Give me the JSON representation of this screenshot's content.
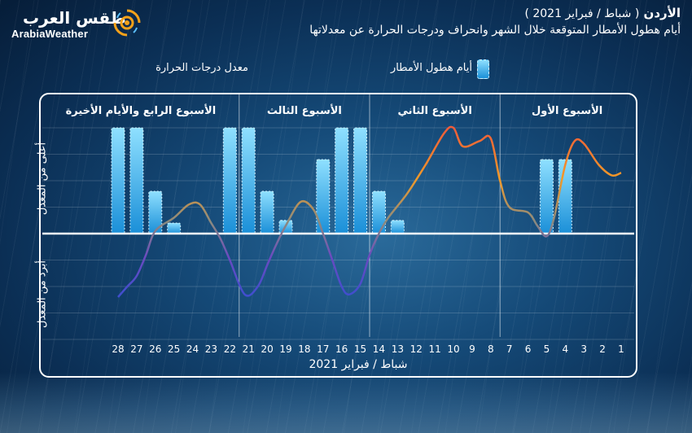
{
  "header": {
    "country": "الأردن",
    "month": "( شباط / فبراير 2021 )",
    "subtitle": "أيام هطول الأمطار المتوقعة خلال الشهر  وانحراف ودرجات الحرارة عن معدلاتها"
  },
  "logo": {
    "arabic": "طقس العرب",
    "english": "ArabiaWeather",
    "icon": "sun-swirl-icon"
  },
  "legend": {
    "rain_days": "أيام هطول الأمطار",
    "avg_temp": "معدل درجات الحرارة"
  },
  "colors": {
    "bar_top": "#8fe0ff",
    "bar_bottom": "#1a8fd8",
    "line_warm": "#f08a2a",
    "line_cold": "#3a4fd0"
  },
  "chart_data": {
    "type": "bar",
    "title": "",
    "xlabel": "شباط / فبراير 2021",
    "ylabel_top": "أعلى من المعدل",
    "ylabel_bottom": "أبرد من المعدل",
    "x_direction": "right-to-left",
    "days": [
      1,
      2,
      3,
      4,
      5,
      6,
      7,
      8,
      9,
      10,
      11,
      12,
      13,
      14,
      15,
      16,
      17,
      18,
      19,
      20,
      21,
      22,
      23,
      24,
      25,
      26,
      27,
      28
    ],
    "x_tick_labels": [
      "1",
      "2",
      "3",
      "4",
      "5",
      "6",
      "7",
      "8",
      "9",
      "10",
      "11",
      "12",
      "13",
      "14",
      "15",
      "16",
      "17",
      "18",
      "19",
      "20",
      "21",
      "22",
      "23",
      "24",
      "25",
      "26",
      "27",
      "28"
    ],
    "weeks": [
      {
        "label": "الأسبوع الأول",
        "start_day": 1,
        "end_day": 7
      },
      {
        "label": "الأسبوع الثاني",
        "start_day": 8,
        "end_day": 14
      },
      {
        "label": "الأسبوع الثالث",
        "start_day": 15,
        "end_day": 21
      },
      {
        "label": "الأسبوع الرابع والأيام الأخيرة",
        "start_day": 22,
        "end_day": 28
      }
    ],
    "series": [
      {
        "name": "أيام هطول الأمطار",
        "kind": "bar",
        "points": [
          {
            "day": 4,
            "value": 2.8
          },
          {
            "day": 5,
            "value": 2.8
          },
          {
            "day": 13,
            "value": 0.5
          },
          {
            "day": 14,
            "value": 1.6
          },
          {
            "day": 15,
            "value": 4.0
          },
          {
            "day": 16,
            "value": 4.0
          },
          {
            "day": 17,
            "value": 2.8
          },
          {
            "day": 19,
            "value": 0.5
          },
          {
            "day": 20,
            "value": 1.6
          },
          {
            "day": 21,
            "value": 4.0
          },
          {
            "day": 22,
            "value": 4.0
          },
          {
            "day": 25,
            "value": 0.4
          },
          {
            "day": 26,
            "value": 1.6
          },
          {
            "day": 27,
            "value": 4.0
          },
          {
            "day": 28,
            "value": 4.0
          }
        ]
      },
      {
        "name": "معدل درجات الحرارة",
        "kind": "line",
        "points": [
          {
            "day": 1,
            "value": 2.3
          },
          {
            "day": 1.5,
            "value": 2.2
          },
          {
            "day": 2.2,
            "value": 2.6
          },
          {
            "day": 3,
            "value": 3.4
          },
          {
            "day": 3.5,
            "value": 3.5
          },
          {
            "day": 4,
            "value": 2.6
          },
          {
            "day": 4.6,
            "value": 0.6
          },
          {
            "day": 5,
            "value": -0.1
          },
          {
            "day": 5.5,
            "value": 0.3
          },
          {
            "day": 6,
            "value": 0.8
          },
          {
            "day": 7,
            "value": 1.0
          },
          {
            "day": 7.5,
            "value": 2.0
          },
          {
            "day": 8,
            "value": 3.6
          },
          {
            "day": 8.6,
            "value": 3.5
          },
          {
            "day": 9.5,
            "value": 3.3
          },
          {
            "day": 10,
            "value": 4.0
          },
          {
            "day": 10.5,
            "value": 3.8
          },
          {
            "day": 11.5,
            "value": 2.6
          },
          {
            "day": 12.5,
            "value": 1.5
          },
          {
            "day": 13.5,
            "value": 0.6
          },
          {
            "day": 14,
            "value": 0.0
          },
          {
            "day": 14.5,
            "value": -0.8
          },
          {
            "day": 15,
            "value": -1.9
          },
          {
            "day": 15.6,
            "value": -2.3
          },
          {
            "day": 16,
            "value": -2.0
          },
          {
            "day": 16.5,
            "value": -1.0
          },
          {
            "day": 17,
            "value": 0.0
          },
          {
            "day": 17.5,
            "value": 0.9
          },
          {
            "day": 18.2,
            "value": 1.2
          },
          {
            "day": 19,
            "value": 0.3
          },
          {
            "day": 19.5,
            "value": -0.4
          },
          {
            "day": 20,
            "value": -1.2
          },
          {
            "day": 20.5,
            "value": -2.0
          },
          {
            "day": 21.2,
            "value": -2.3
          },
          {
            "day": 22,
            "value": -1.0
          },
          {
            "day": 22.5,
            "value": -0.2
          },
          {
            "day": 23,
            "value": 0.4
          },
          {
            "day": 23.6,
            "value": 1.1
          },
          {
            "day": 24.2,
            "value": 1.1
          },
          {
            "day": 25,
            "value": 0.6
          },
          {
            "day": 26,
            "value": 0.1
          },
          {
            "day": 26.5,
            "value": -0.8
          },
          {
            "day": 27,
            "value": -1.6
          },
          {
            "day": 27.5,
            "value": -2.0
          },
          {
            "day": 28,
            "value": -2.4
          }
        ]
      }
    ],
    "ylim": [
      -4,
      4
    ],
    "grid": true
  }
}
